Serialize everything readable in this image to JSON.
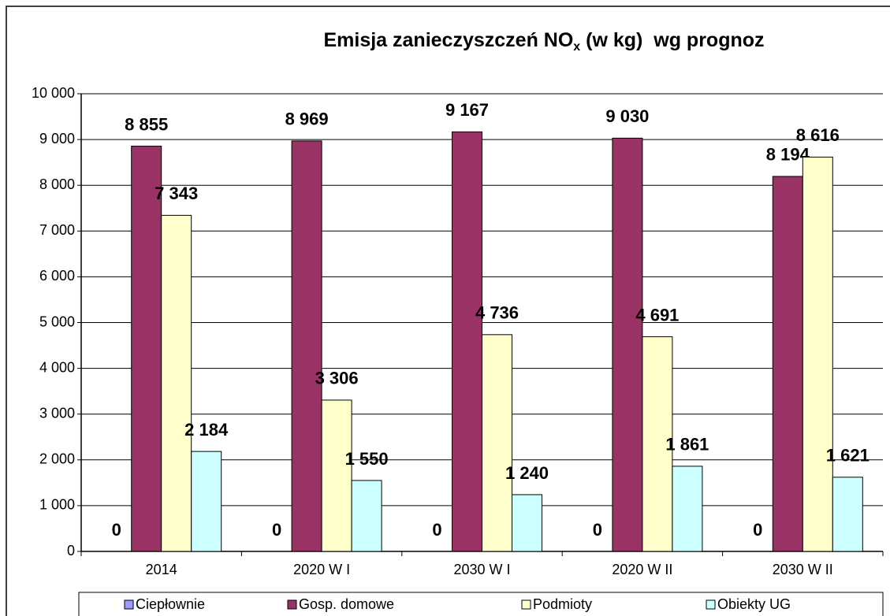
{
  "chart_data": {
    "type": "bar",
    "title": [
      "Emisja zanieczyszczeń NO",
      "x",
      " (w kg)  wg prognoz"
    ],
    "categories": [
      "2014",
      "2020 W I",
      "2030 W I",
      "2020 W II",
      "2030 W II"
    ],
    "series": [
      {
        "name": "Ciepłownie",
        "color": "#9999ff",
        "values": [
          0,
          0,
          0,
          0,
          0
        ]
      },
      {
        "name": "Gosp. domowe",
        "color": "#993366",
        "values": [
          8855,
          8969,
          9167,
          9030,
          8194
        ],
        "value_labels": [
          "8 855",
          "8 969",
          "9 167",
          "9 030",
          "8 194"
        ]
      },
      {
        "name": "Podmioty",
        "color": "#ffffcc",
        "values": [
          7343,
          3306,
          4736,
          4691,
          8616
        ],
        "value_labels": [
          "7 343",
          "3 306",
          "4 736",
          "4 691",
          "8 616"
        ]
      },
      {
        "name": "Obiekty UG",
        "color": "#ccffff",
        "values": [
          2184,
          1550,
          1240,
          1861,
          1621
        ],
        "value_labels": [
          "2 184",
          "1 550",
          "1 240",
          "1 861",
          "1 621"
        ]
      }
    ],
    "ylim": [
      0,
      10000
    ],
    "yticks": [
      0,
      {
        "value": 1000,
        "label": "1 000"
      },
      {
        "value": 2000,
        "label": "2 000"
      },
      {
        "value": 3000,
        "label": "3 000"
      },
      {
        "value": 4000,
        "label": "4 000"
      },
      {
        "value": 5000,
        "label": "5 000"
      },
      {
        "value": 6000,
        "label": "6 000"
      },
      {
        "value": 7000,
        "label": "7 000"
      },
      {
        "value": 8000,
        "label": "8 000"
      },
      {
        "value": 9000,
        "label": "9 000"
      },
      {
        "value": 10000,
        "label": "10 000"
      }
    ],
    "grid": true,
    "legend": "bottom"
  }
}
